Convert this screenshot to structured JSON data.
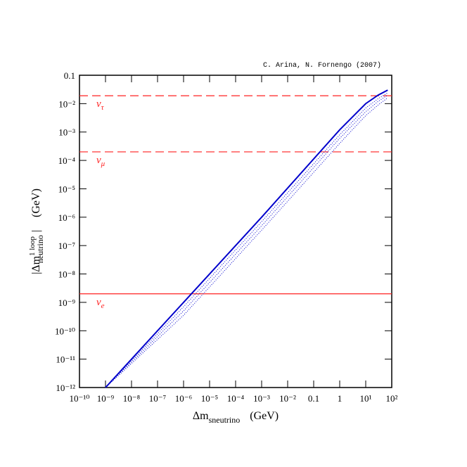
{
  "chart_data": {
    "type": "line",
    "credit": "C. Arina, N. Fornengo (2007)",
    "xlabel": {
      "main": "Δm",
      "sub": "sneutrino",
      "unit": "(GeV)"
    },
    "ylabel": {
      "main": "|Δm",
      "sup": "1 loop",
      "sub": "neutrino",
      "end": "|",
      "unit": "(GeV)"
    },
    "xscale": "log",
    "yscale": "log",
    "xlim": [
      1e-10,
      100
    ],
    "ylim": [
      1e-12,
      0.1
    ],
    "xticks": [
      {
        "value": 1e-10,
        "label": "10⁻¹⁰"
      },
      {
        "value": 1e-09,
        "label": "10⁻⁹"
      },
      {
        "value": 1e-08,
        "label": "10⁻⁸"
      },
      {
        "value": 1e-07,
        "label": "10⁻⁷"
      },
      {
        "value": 1e-06,
        "label": "10⁻⁶"
      },
      {
        "value": 1e-05,
        "label": "10⁻⁵"
      },
      {
        "value": 0.0001,
        "label": "10⁻⁴"
      },
      {
        "value": 0.001,
        "label": "10⁻³"
      },
      {
        "value": 0.01,
        "label": "10⁻²"
      },
      0.1,
      1,
      {
        "value": 10,
        "label": "10¹"
      },
      {
        "value": 100,
        "label": "10²"
      }
    ],
    "yticks": [
      {
        "value": 1e-12,
        "label": "10⁻¹²"
      },
      {
        "value": 1e-11,
        "label": "10⁻¹¹"
      },
      {
        "value": 1e-10,
        "label": "10⁻¹⁰"
      },
      {
        "value": 1e-09,
        "label": "10⁻⁹"
      },
      {
        "value": 1e-08,
        "label": "10⁻⁸"
      },
      {
        "value": 1e-07,
        "label": "10⁻⁷"
      },
      {
        "value": 1e-06,
        "label": "10⁻⁶"
      },
      {
        "value": 1e-05,
        "label": "10⁻⁵"
      },
      {
        "value": 0.0001,
        "label": "10⁻⁴"
      },
      {
        "value": 0.001,
        "label": "10⁻³"
      },
      {
        "value": 0.01,
        "label": "10⁻²"
      },
      0.1
    ],
    "hlines": [
      {
        "value": 0.019,
        "name": "ν",
        "sub": "τ",
        "style": "dashed",
        "color": "#ff2020"
      },
      {
        "value": 0.0002,
        "name": "ν",
        "sub": "μ",
        "style": "dashed",
        "color": "#ff2020"
      },
      {
        "value": 2e-09,
        "name": "ν",
        "sub": "e",
        "style": "solid",
        "color": "#ff2020"
      }
    ],
    "series": [
      {
        "style": "solid",
        "color": "#0000cc",
        "x": [
          1e-09,
          1e-06,
          0.001,
          1,
          10,
          30,
          70
        ],
        "values": [
          1e-12,
          1e-09,
          1e-06,
          0.0012,
          0.01,
          0.02,
          0.03
        ]
      },
      {
        "style": "dotted",
        "color": "#0000cc",
        "x": [
          1e-09,
          1e-06,
          0.001,
          1,
          10,
          30,
          70
        ],
        "values": [
          1e-12,
          7e-10,
          7e-07,
          0.0008,
          0.007,
          0.015,
          0.024
        ]
      },
      {
        "style": "dotted",
        "color": "#0000cc",
        "x": [
          1e-09,
          1e-06,
          0.001,
          1,
          10,
          30,
          70
        ],
        "values": [
          1e-12,
          5e-10,
          5e-07,
          0.0006,
          0.0052,
          0.012,
          0.02
        ]
      },
      {
        "style": "dotted",
        "color": "#0000cc",
        "x": [
          1e-09,
          1e-06,
          0.001,
          1,
          10,
          30,
          70
        ],
        "values": [
          1e-12,
          3.5e-10,
          3.5e-07,
          0.0004,
          0.0038,
          0.009,
          0.016
        ]
      }
    ]
  }
}
